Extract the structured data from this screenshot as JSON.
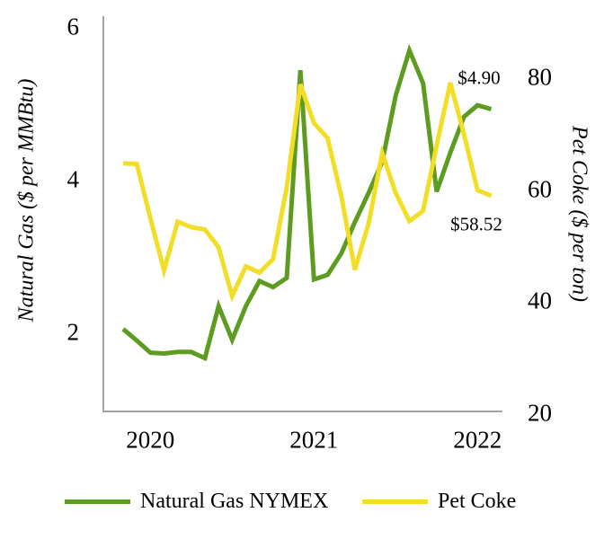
{
  "chart": {
    "left_axis": {
      "title": "Natural Gas ($ per MMBtu)",
      "ticks": [
        {
          "label": "6",
          "value": 6
        },
        {
          "label": "4",
          "value": 4
        },
        {
          "label": "2",
          "value": 2
        }
      ]
    },
    "right_axis": {
      "title": "Pet Coke ($ per ton)",
      "ticks": [
        {
          "label": "80",
          "value": 80
        },
        {
          "label": "60",
          "value": 60
        },
        {
          "label": "40",
          "value": 40
        },
        {
          "label": "20",
          "value": 20
        }
      ]
    },
    "x_axis": {
      "ticks": [
        {
          "label": "2020",
          "month_index": 2
        },
        {
          "label": "2021",
          "month_index": 14
        },
        {
          "label": "2022",
          "month_index": 26
        }
      ]
    },
    "annotations": [
      {
        "text": "$4.90",
        "series": "Natural Gas NYMEX"
      },
      {
        "text": "$58.52",
        "series": "Pet Coke"
      }
    ],
    "legend": [
      {
        "label": "Natural Gas NYMEX",
        "color": "#5d9c20"
      },
      {
        "label": "Pet Coke",
        "color": "#f2de26"
      }
    ],
    "colors": {
      "natural_gas": "#5d9c20",
      "pet_coke": "#f2de26",
      "axis_line": "#a3a3a3",
      "text": "#000000"
    }
  },
  "chart_data": {
    "type": "line",
    "x": [
      "Nov-2019",
      "Dec-2019",
      "Jan-2020",
      "Feb-2020",
      "Mar-2020",
      "Apr-2020",
      "May-2020",
      "Jun-2020",
      "Jul-2020",
      "Aug-2020",
      "Sep-2020",
      "Oct-2020",
      "Nov-2020",
      "Dec-2020",
      "Jan-2021",
      "Feb-2021",
      "Mar-2021",
      "Apr-2021",
      "May-2021",
      "Jun-2021",
      "Jul-2021",
      "Aug-2021",
      "Sep-2021",
      "Oct-2021",
      "Nov-2021",
      "Dec-2021",
      "Jan-2022",
      "Feb-2022"
    ],
    "series": [
      {
        "name": "Natural Gas NYMEX",
        "axis": "left",
        "units": "$ per MMBtu",
        "color": "#5d9c20",
        "values": [
          2.02,
          1.87,
          1.71,
          1.7,
          1.72,
          1.72,
          1.64,
          2.32,
          1.88,
          2.32,
          2.65,
          2.57,
          2.69,
          5.41,
          2.67,
          2.73,
          3.01,
          3.42,
          3.8,
          4.21,
          5.08,
          5.67,
          5.24,
          3.82,
          4.33,
          4.8,
          4.95,
          4.9
        ],
        "last_value_label": "$4.90"
      },
      {
        "name": "Pet Coke",
        "axis": "right",
        "units": "$ per ton",
        "color": "#f2de26",
        "values": [
          64.3,
          64.2,
          54.5,
          45.2,
          53.9,
          52.9,
          52.5,
          49.3,
          40.6,
          45.9,
          44.8,
          47.2,
          60.0,
          78.4,
          71.5,
          68.8,
          58.5,
          45.3,
          53.5,
          66.1,
          59.0,
          54.0,
          55.8,
          67.5,
          78.7,
          69.5,
          59.5,
          58.52
        ],
        "last_value_label": "$58.52"
      }
    ],
    "title": "",
    "xlabel": "",
    "ylabel_left": "Natural Gas ($ per MMBtu)",
    "ylabel_right": "Pet Coke ($ per ton)",
    "ylim_left": [
      1,
      6.2
    ],
    "ylim_right": [
      20,
      90.6
    ],
    "x_tick_labels": [
      "2020",
      "2021",
      "2022"
    ],
    "grid": false,
    "legend_position": "bottom"
  }
}
